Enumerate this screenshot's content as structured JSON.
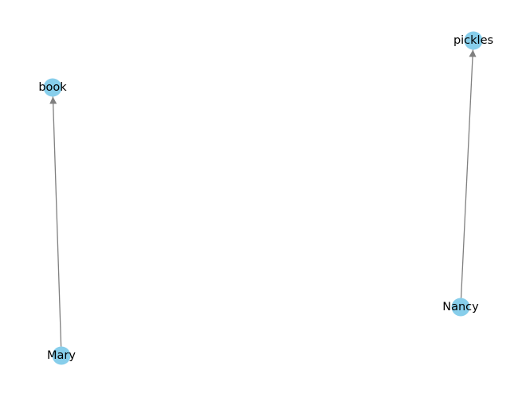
{
  "graph": {
    "colors": {
      "node_fill": "#87ceeb",
      "edge_stroke": "#808080",
      "label_text": "#000000",
      "background": "#ffffff"
    },
    "nodes": [
      {
        "id": "book",
        "label": "book"
      },
      {
        "id": "Mary",
        "label": "Mary"
      },
      {
        "id": "pickles",
        "label": "pickles"
      },
      {
        "id": "Nancy",
        "label": "Nancy"
      }
    ],
    "edges": [
      {
        "source": "Mary",
        "target": "book",
        "directed": true
      },
      {
        "source": "Nancy",
        "target": "pickles",
        "directed": true
      }
    ]
  }
}
